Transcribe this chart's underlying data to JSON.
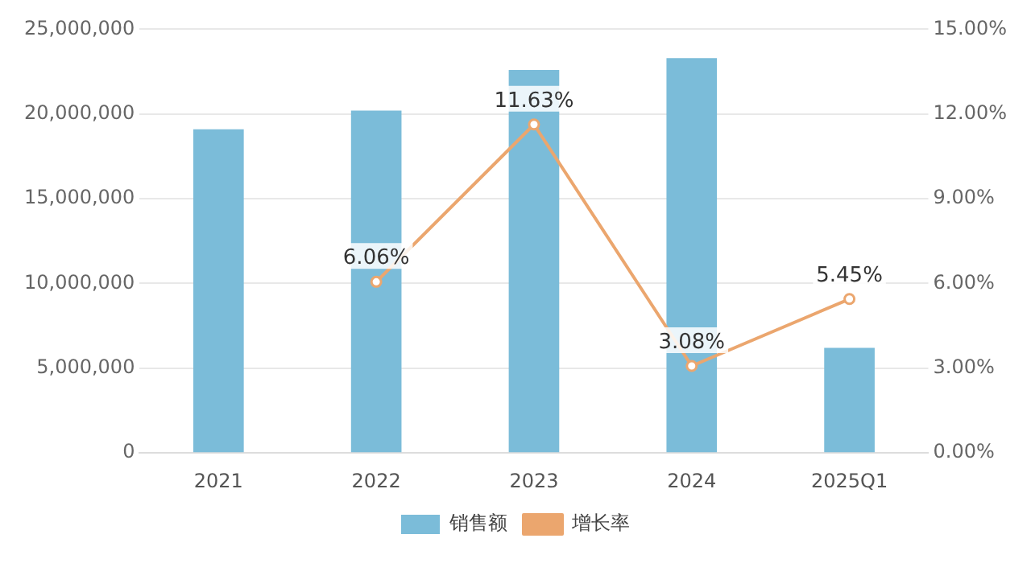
{
  "chart_data": {
    "type": "bar",
    "categories": [
      "2021",
      "2022",
      "2023",
      "2024",
      "2025Q1"
    ],
    "series": [
      {
        "name": "销售额",
        "color": "#7bbcd9",
        "values": [
          19100000,
          20200000,
          22600000,
          23300000,
          6200000
        ]
      },
      {
        "name": "增长率",
        "type": "line",
        "axis": "y2",
        "color": "#eba66e",
        "values": [
          null,
          6.06,
          11.63,
          3.08,
          5.45
        ],
        "value_labels": [
          null,
          "6.06%",
          "11.63%",
          "3.08%",
          "5.45%"
        ]
      }
    ],
    "ylim": [
      0,
      25000000
    ],
    "yticks": [
      {
        "value": 0,
        "label": "0"
      },
      {
        "value": 5000000,
        "label": "5,000,000"
      },
      {
        "value": 10000000,
        "label": "10,000,000"
      },
      {
        "value": 15000000,
        "label": "15,000,000"
      },
      {
        "value": 20000000,
        "label": "20,000,000"
      },
      {
        "value": 25000000,
        "label": "25,000,000"
      }
    ],
    "y2lim": [
      0,
      15
    ],
    "y2ticks": [
      {
        "value": 0,
        "label": "0.00%"
      },
      {
        "value": 3,
        "label": "3.00%"
      },
      {
        "value": 6,
        "label": "6.00%"
      },
      {
        "value": 9,
        "label": "9.00%"
      },
      {
        "value": 12,
        "label": "12.00%"
      },
      {
        "value": 15,
        "label": "15.00%"
      }
    ],
    "grid": "y",
    "legend": "bottom",
    "marker": "circle"
  }
}
